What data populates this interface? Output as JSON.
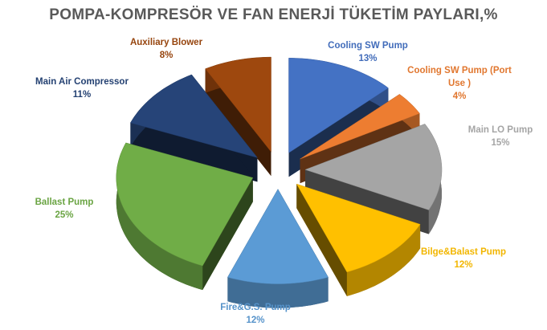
{
  "chart_data": {
    "type": "pie",
    "title": "POMPA-KOMPRESÖR VE FAN ENERJİ TÜKETİM PAYLARI,%",
    "categories": [
      "Cooling SW Pump",
      "Cooling SW Pump (Port Use )",
      "Main LO Pump",
      "Bilge&Balast Pump",
      "Fire&G.S. Pump",
      "Ballast Pump",
      "Main Air Compressor",
      "Auxiliary Blower"
    ],
    "values": [
      13,
      4,
      15,
      12,
      12,
      25,
      11,
      8
    ],
    "value_labels": [
      "13%",
      "4%",
      "15%",
      "12%",
      "12%",
      "25%",
      "11%",
      "8%"
    ],
    "colors": [
      "#4472c4",
      "#ed7d31",
      "#a5a5a5",
      "#ffc000",
      "#5b9bd5",
      "#70ad47",
      "#264478",
      "#9e480e"
    ]
  }
}
